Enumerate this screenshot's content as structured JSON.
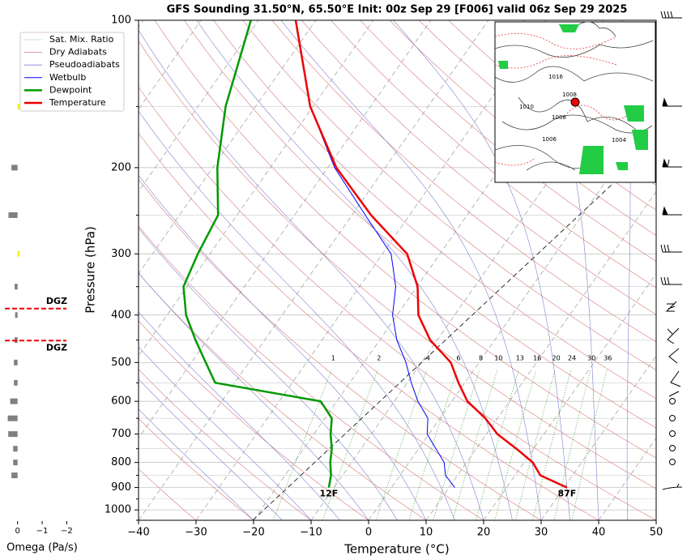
{
  "chart_data": [
    {
      "type": "skewt",
      "title": "GFS Sounding 31.50°N, 65.50°E Init: 00z Sep 29 [F006] valid 06z Sep 29 2025",
      "x_label": "Temperature (°C)",
      "y_label": "Pressure (hPa)",
      "xlim": [
        -40,
        50
      ],
      "xticks": [
        {
          "value": -40,
          "label": "−40"
        },
        {
          "value": -30,
          "label": "−30"
        },
        {
          "value": -20,
          "label": "−20"
        },
        {
          "value": -10,
          "label": "−10"
        },
        0,
        10,
        20,
        30,
        40,
        50
      ],
      "ylim": [
        1050,
        100
      ],
      "log_scale": true,
      "yticks": [
        100,
        200,
        300,
        400,
        500,
        600,
        700,
        800,
        900,
        1000
      ],
      "pressure": [
        900,
        850,
        800,
        750,
        700,
        650,
        600,
        550,
        500,
        450,
        400,
        350,
        300,
        250,
        200,
        150,
        100
      ],
      "series": [
        {
          "name": "Wetbulb",
          "color": "#0000ff",
          "width": 1,
          "values": [
            11.0,
            7.9,
            6.1,
            3.0,
            -0.3,
            -2.1,
            -5.9,
            -9.3,
            -12.7,
            -17.0,
            -20.8,
            -23.7,
            -28.5,
            -37.7,
            -48.8,
            -60.5,
            -73.5
          ]
        },
        {
          "name": "Dewpoint",
          "color": "#009900",
          "width": 2.5,
          "surface_label": "12F",
          "values": [
            -10.9,
            -12.0,
            -13.7,
            -15.1,
            -17.1,
            -18.8,
            -22.8,
            -43.4,
            -47.5,
            -52.0,
            -56.7,
            -60.6,
            -62.1,
            -63.3,
            -69.2,
            -75.2,
            -81.3
          ]
        },
        {
          "name": "Temperature",
          "color": "#ee0000",
          "width": 2.5,
          "surface_label": "87F",
          "values": [
            30.5,
            24.4,
            21.5,
            17.0,
            11.9,
            7.9,
            2.7,
            -1.1,
            -4.9,
            -11.2,
            -16.3,
            -19.9,
            -25.7,
            -36.7,
            -48.5,
            -60.5,
            -73.5
          ]
        }
      ],
      "mixing_ratio_labels": [
        1,
        2,
        4,
        6,
        8,
        10,
        13,
        16,
        20,
        24,
        30,
        36
      ],
      "reference_lines": [
        {
          "name": "Sat. Mix. Ratio",
          "color": "#2ca02c",
          "dash": "1 2"
        },
        {
          "name": "Dry Adiabats",
          "color": "#d67a7a",
          "dash": ""
        },
        {
          "name": "Pseudoadiabats",
          "color": "#8080d0",
          "dash": ""
        }
      ],
      "grid": true,
      "inset_labels": [
        "1010",
        "1016",
        "1008",
        "1006",
        "1004",
        "1008"
      ]
    },
    {
      "type": "omega-bar",
      "x_label": "Omega (Pa/s)",
      "xlim": [
        0.55,
        -2.25
      ],
      "xticks": [
        0,
        {
          "value": -1,
          "label": "−1"
        },
        {
          "value": -2,
          "label": "−2"
        }
      ],
      "pressure": [
        150,
        200,
        250,
        300,
        350,
        400,
        450,
        500,
        550,
        600,
        650,
        700,
        750,
        800,
        850
      ],
      "values": [
        -0.08,
        0.25,
        0.37,
        -0.08,
        0.12,
        0.1,
        0.12,
        0.15,
        0.15,
        0.3,
        0.4,
        0.38,
        0.18,
        0.18,
        0.25
      ],
      "positive_color": "#808080",
      "negative_color": "#f0f000",
      "dgz": [
        {
          "label": "DGZ",
          "pressure": 388
        },
        {
          "label": "DGZ",
          "pressure": 451
        }
      ]
    }
  ]
}
